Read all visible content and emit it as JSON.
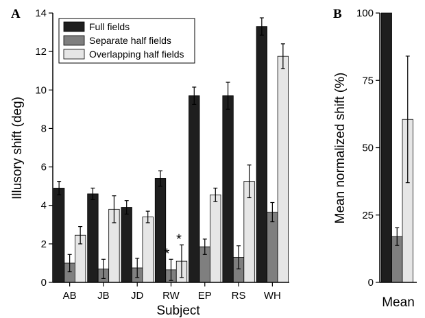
{
  "chart_data": [
    {
      "panel_label": "A",
      "type": "bar",
      "xlabel": "Subject",
      "ylabel": "Illusory shift (deg)",
      "ylim": [
        0,
        14
      ],
      "yticks": [
        "0",
        "2",
        "4",
        "6",
        "8",
        "10",
        "12",
        "14"
      ],
      "categories": [
        "AB",
        "JB",
        "JD",
        "RW",
        "EP",
        "RS",
        "WH"
      ],
      "legend_position": "top-left",
      "series": [
        {
          "name": "Full fields",
          "color": "#1e1e1e",
          "values": [
            4.9,
            4.6,
            3.9,
            5.4,
            9.7,
            9.7,
            13.3
          ],
          "errors": [
            0.35,
            0.3,
            0.35,
            0.4,
            0.45,
            0.7,
            0.45
          ]
        },
        {
          "name": "Separate half fields",
          "color": "#7f7f7f",
          "values": [
            1.0,
            0.7,
            0.75,
            0.65,
            1.85,
            1.3,
            3.65
          ],
          "errors": [
            0.45,
            0.5,
            0.5,
            0.55,
            0.4,
            0.6,
            0.5
          ]
        },
        {
          "name": "Overlapping half fields",
          "color": "#e6e6e6",
          "values": [
            2.45,
            3.8,
            3.4,
            1.1,
            4.55,
            5.25,
            11.75
          ],
          "errors": [
            0.45,
            0.7,
            0.3,
            0.85,
            0.35,
            0.85,
            0.65
          ]
        }
      ],
      "annotations": [
        {
          "text": "*",
          "category": "RW",
          "series": 1
        },
        {
          "text": "*",
          "category": "RW",
          "series": 2
        }
      ]
    },
    {
      "panel_label": "B",
      "type": "bar",
      "xlabel": "Mean",
      "ylabel": "Mean normalized shift (%)",
      "ylim": [
        0,
        100
      ],
      "yticks": [
        "0",
        "25",
        "50",
        "75",
        "100"
      ],
      "series": [
        {
          "name": "Full fields",
          "color": "#1e1e1e",
          "value": 100,
          "error": 0
        },
        {
          "name": "Separate half fields",
          "color": "#7f7f7f",
          "value": 17,
          "error": 3.3
        },
        {
          "name": "Overlapping half fields",
          "color": "#e6e6e6",
          "value": 60.5,
          "error": 23.5
        }
      ]
    }
  ]
}
